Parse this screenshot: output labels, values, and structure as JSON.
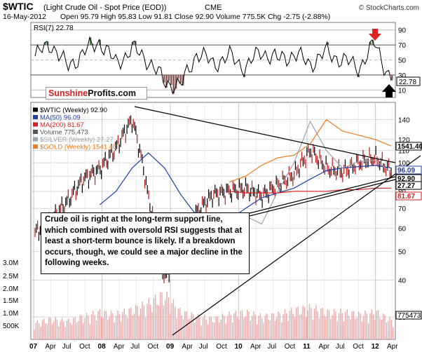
{
  "header": {
    "symbol": "$WTIC",
    "description": "(Light Crude Oil - Spot Price (EOD))",
    "exchange": "CME",
    "date": "16-May-2012",
    "ohlc": "Open 95.79  High 95.83  Low 91.81  Close 92.90  Volume 775.5K  Chg -2.75 (-2.88%)",
    "watermark": "© StockCharts.com"
  },
  "rsi_panel": {
    "label": "RSI(7) 22.78",
    "last_value": "22.78",
    "ticks": [
      "90",
      "70",
      "50",
      "30",
      "10"
    ]
  },
  "logo": {
    "part1": "Sunshine",
    "part2": "Profits.com"
  },
  "legend": [
    {
      "text": "$WTIC (Weekly) 92.90",
      "color": "#000000"
    },
    {
      "text": "MA(50) 96.09",
      "color": "#1f3fa8"
    },
    {
      "text": "MA(200) 81.67",
      "color": "#d42020"
    },
    {
      "text": "Volume 775,473",
      "color": "#555555"
    },
    {
      "text": "$SILVER (Weekly) 27.27",
      "color": "#9aa4b0"
    },
    {
      "text": "$GOLD (Weekly) 1541.40",
      "color": "#ef7a1a"
    }
  ],
  "price_axis": {
    "ticks": [
      "140",
      "120",
      "110",
      "100",
      "90",
      "80",
      "70",
      "60",
      "50",
      "40",
      "30"
    ],
    "flags": [
      "1541.40",
      "96.09",
      "92.90",
      "27.27",
      "81.67"
    ]
  },
  "volume_axis": {
    "ticks": [
      "3.0M",
      "2.5M",
      "2.0M",
      "1.5M",
      "1.0M",
      "500K"
    ],
    "flag": "775473"
  },
  "x_axis": {
    "labels": [
      "07",
      "Apr",
      "Jul",
      "Oct",
      "08",
      "Apr",
      "Jul",
      "Oct",
      "09",
      "Apr",
      "Jul",
      "Oct",
      "10",
      "Apr",
      "Jul",
      "Oct",
      "11",
      "Apr",
      "Jul",
      "Oct",
      "12",
      "Apr"
    ]
  },
  "annotation": {
    "text": "Crude oil is right at the long-term support line, which combined with oversold RSI suggests that at least a short-term bounce is likely. If a breakdown occurs, though, we could see a major decline in the following weeks."
  },
  "chart_data": {
    "type": "line",
    "title": "$WTIC (Light Crude Oil - Spot Price (EOD)) CME",
    "xlabel": "",
    "ylabel": "",
    "ylim": [
      30,
      150
    ],
    "x": [
      "2007-01",
      "2007-04",
      "2007-07",
      "2007-10",
      "2008-01",
      "2008-04",
      "2008-07",
      "2008-10",
      "2009-01",
      "2009-04",
      "2009-07",
      "2009-10",
      "2010-01",
      "2010-04",
      "2010-07",
      "2010-10",
      "2011-01",
      "2011-04",
      "2011-07",
      "2011-10",
      "2012-01",
      "2012-04",
      "2012-05"
    ],
    "series": [
      {
        "name": "$WTIC (Weekly) 92.90",
        "values": [
          58,
          64,
          74,
          88,
          95,
          112,
          140,
          76,
          40,
          52,
          68,
          78,
          80,
          82,
          77,
          84,
          91,
          110,
          96,
          93,
          100,
          104,
          93
        ]
      },
      {
        "name": "MA(50) 96.09",
        "values": [
          null,
          null,
          null,
          null,
          72,
          80,
          96,
          108,
          96,
          78,
          66,
          62,
          64,
          70,
          76,
          79,
          82,
          88,
          94,
          96,
          97,
          98,
          96
        ]
      },
      {
        "name": "MA(200) 81.67",
        "values": [
          null,
          null,
          null,
          null,
          null,
          null,
          null,
          null,
          null,
          null,
          null,
          null,
          80,
          79,
          79,
          79,
          80,
          80,
          80,
          81,
          81,
          82,
          82
        ]
      },
      {
        "name": "$SILVER (Weekly) 27.27",
        "values": [
          null,
          null,
          null,
          null,
          null,
          null,
          null,
          null,
          null,
          null,
          null,
          null,
          63,
          66,
          62,
          80,
          100,
          138,
          110,
          96,
          101,
          102,
          93
        ]
      },
      {
        "name": "$GOLD (Weekly) 1541.40",
        "values": [
          null,
          null,
          null,
          null,
          null,
          null,
          null,
          null,
          null,
          null,
          null,
          null,
          86,
          90,
          98,
          104,
          106,
          116,
          140,
          128,
          124,
          120,
          114
        ]
      }
    ],
    "rsi": {
      "name": "RSI(7) 22.78",
      "ylim": [
        0,
        100
      ],
      "values": [
        55,
        72,
        40,
        60,
        75,
        45,
        65,
        50,
        20,
        15,
        60,
        45,
        55,
        40,
        62,
        50,
        58,
        45,
        60,
        50,
        40,
        72,
        22.78
      ]
    },
    "volume": {
      "name": "Volume 775,473",
      "values": [
        0.7,
        0.9,
        0.8,
        1.0,
        1.2,
        1.1,
        1.3,
        1.6,
        2.0,
        1.2,
        1.0,
        0.9,
        1.1,
        1.2,
        1.0,
        1.1,
        1.3,
        1.4,
        1.2,
        1.2,
        1.1,
        1.2,
        0.8
      ]
    }
  }
}
